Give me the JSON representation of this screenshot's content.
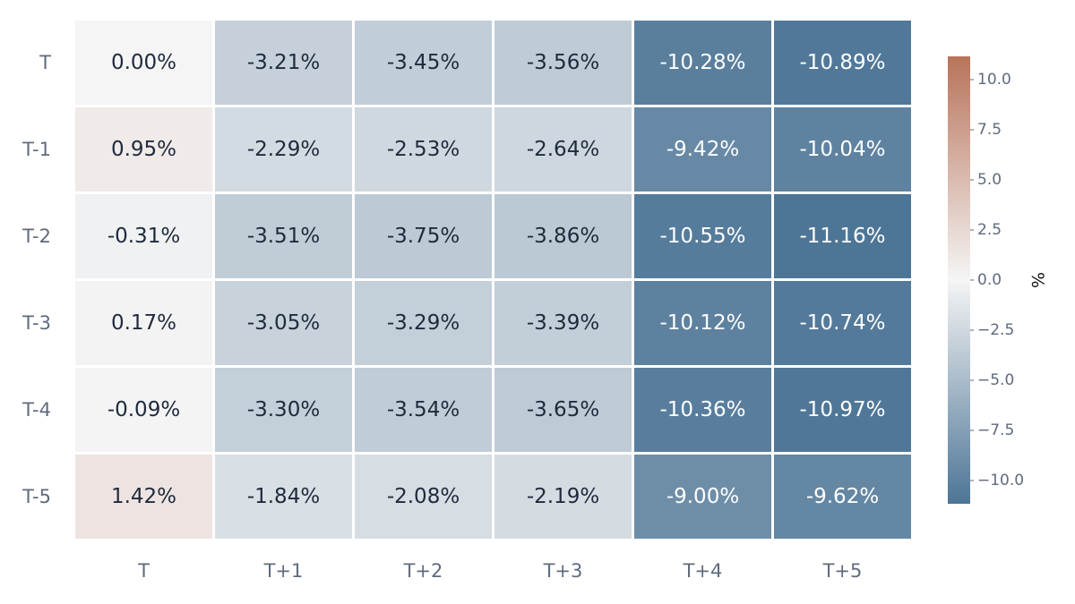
{
  "chart_data": {
    "type": "heatmap",
    "rows": [
      "T",
      "T-1",
      "T-2",
      "T-3",
      "T-4",
      "T-5"
    ],
    "columns": [
      "T",
      "T+1",
      "T+2",
      "T+3",
      "T+4",
      "T+5"
    ],
    "values": [
      [
        0.0,
        -3.21,
        -3.45,
        -3.56,
        -10.28,
        -10.89
      ],
      [
        0.95,
        -2.29,
        -2.53,
        -2.64,
        -9.42,
        -10.04
      ],
      [
        -0.31,
        -3.51,
        -3.75,
        -3.86,
        -10.55,
        -11.16
      ],
      [
        0.17,
        -3.05,
        -3.29,
        -3.39,
        -10.12,
        -10.74
      ],
      [
        -0.09,
        -3.3,
        -3.54,
        -3.65,
        -10.36,
        -10.97
      ],
      [
        1.42,
        -1.84,
        -2.08,
        -2.19,
        -9.0,
        -9.62
      ]
    ],
    "cell_labels": [
      [
        "0.00%",
        "-3.21%",
        "-3.45%",
        "-3.56%",
        "-10.28%",
        "-10.89%"
      ],
      [
        "0.95%",
        "-2.29%",
        "-2.53%",
        "-2.64%",
        "-9.42%",
        "-10.04%"
      ],
      [
        "-0.31%",
        "-3.51%",
        "-3.75%",
        "-3.86%",
        "-10.55%",
        "-11.16%"
      ],
      [
        "0.17%",
        "-3.05%",
        "-3.29%",
        "-3.39%",
        "-10.12%",
        "-10.74%"
      ],
      [
        "-0.09%",
        "-3.30%",
        "-3.54%",
        "-3.65%",
        "-10.36%",
        "-10.97%"
      ],
      [
        "1.42%",
        "-1.84%",
        "-2.08%",
        "-2.19%",
        "-9.00%",
        "-9.62%"
      ]
    ],
    "colorbar": {
      "title": "%",
      "range": [
        -11.16,
        11.16
      ],
      "ticks": [
        10.0,
        7.5,
        5.0,
        2.5,
        0.0,
        -2.5,
        -5.0,
        -7.5,
        -10.0
      ],
      "tick_labels": [
        "10.0",
        "7.5",
        "5.0",
        "2.5",
        "0.0",
        "−2.5",
        "−5.0",
        "−7.5",
        "−10.0"
      ],
      "colors": {
        "negative": "#4d7596",
        "neutral": "#f5f5f5",
        "positive": "#b8735a"
      }
    },
    "grid": false,
    "legend": "colorbar-right"
  }
}
